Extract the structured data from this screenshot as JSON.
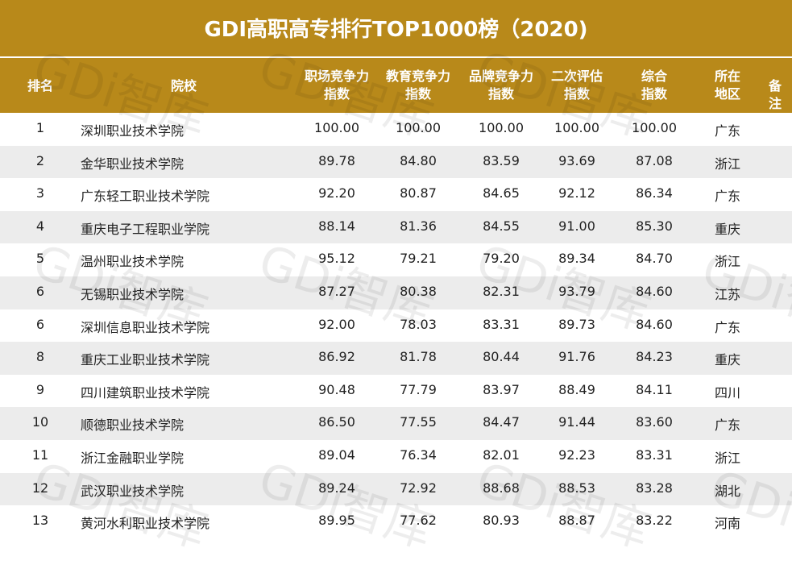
{
  "header": {
    "title": "GDI高职高专排行TOP1000榜（2020)"
  },
  "watermark": "GDi智库",
  "table": {
    "columns": [
      [
        "排名"
      ],
      [
        "院校"
      ],
      [
        "职场竞争力",
        "指数"
      ],
      [
        "教育竞争力",
        "指数"
      ],
      [
        "品牌竞争力",
        "指数"
      ],
      [
        "二次评估",
        "指数"
      ],
      [
        "综合",
        "指数"
      ],
      [
        "所在",
        "地区"
      ],
      [
        "备注"
      ]
    ],
    "rows": [
      [
        "1",
        "深圳职业技术学院",
        "100.00",
        "100.00",
        "100.00",
        "100.00",
        "100.00",
        "广东"
      ],
      [
        "2",
        "金华职业技术学院",
        "89.78",
        "84.80",
        "83.59",
        "93.69",
        "87.08",
        "浙江"
      ],
      [
        "3",
        "广东轻工职业技术学院",
        "92.20",
        "80.87",
        "84.65",
        "92.12",
        "86.34",
        "广东"
      ],
      [
        "4",
        "重庆电子工程职业学院",
        "88.14",
        "81.36",
        "84.55",
        "91.00",
        "85.30",
        "重庆"
      ],
      [
        "5",
        "温州职业技术学院",
        "95.12",
        "79.21",
        "79.20",
        "89.34",
        "84.70",
        "浙江"
      ],
      [
        "6",
        "无锡职业技术学院",
        "87.27",
        "80.38",
        "82.31",
        "93.79",
        "84.60",
        "江苏"
      ],
      [
        "6",
        "深圳信息职业技术学院",
        "92.00",
        "78.03",
        "83.31",
        "89.73",
        "84.60",
        "广东"
      ],
      [
        "8",
        "重庆工业职业技术学院",
        "86.92",
        "81.78",
        "80.44",
        "91.76",
        "84.23",
        "重庆"
      ],
      [
        "9",
        "四川建筑职业技术学院",
        "90.48",
        "77.79",
        "83.97",
        "88.49",
        "84.11",
        "四川"
      ],
      [
        "10",
        "顺德职业技术学院",
        "86.50",
        "77.55",
        "84.47",
        "91.44",
        "83.60",
        "广东"
      ],
      [
        "11",
        "浙江金融职业学院",
        "89.04",
        "76.34",
        "82.01",
        "92.23",
        "83.31",
        "浙江"
      ],
      [
        "12",
        "武汉职业技术学院",
        "89.24",
        "72.92",
        "88.68",
        "88.53",
        "83.28",
        "湖北"
      ],
      [
        "13",
        "黄河水利职业技术学院",
        "89.95",
        "77.62",
        "80.93",
        "88.87",
        "83.22",
        "河南"
      ]
    ]
  }
}
